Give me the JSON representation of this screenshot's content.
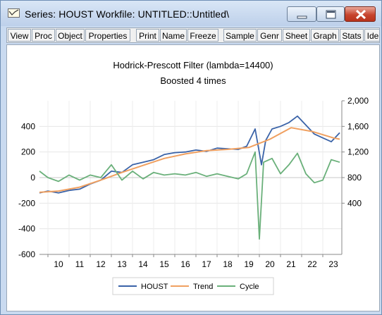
{
  "window": {
    "title": "Series: HOUST   Workfile: UNTITLED::Untitled\\",
    "controls": [
      "minimize",
      "maximize",
      "close"
    ]
  },
  "toolbar": {
    "buttons": [
      "View",
      "Proc",
      "Object",
      "Properties",
      "Print",
      "Name",
      "Freeze",
      "Sample",
      "Genr",
      "Sheet",
      "Graph",
      "Stats",
      "Ide"
    ]
  },
  "chart_data": {
    "type": "line",
    "title": "Hodrick-Prescott Filter (lambda=14400)",
    "subtitle": "Boosted 4 times",
    "xlabel": "",
    "ylabel": "",
    "x_ticks": [
      "10",
      "11",
      "12",
      "13",
      "14",
      "15",
      "16",
      "17",
      "18",
      "19",
      "20",
      "21",
      "22",
      "23"
    ],
    "x_range": [
      2009.6,
      2023.9
    ],
    "left_axis": {
      "range": [
        -600,
        600
      ],
      "ticks": [
        "400",
        "200",
        "0",
        "-200",
        "-400",
        "-600"
      ],
      "tick_values": [
        400,
        200,
        0,
        -200,
        -400,
        -600
      ]
    },
    "right_axis": {
      "range": [
        -400,
        2000
      ],
      "ticks": [
        "2,000",
        "1,600",
        "1,200",
        "800",
        "400"
      ],
      "tick_values": [
        2000,
        1600,
        1200,
        800,
        400
      ]
    },
    "grid": true,
    "legend": "bottom-center",
    "colors": {
      "HOUST": "#3a63a8",
      "Trend": "#f0a060",
      "Cycle": "#6ab07a"
    },
    "series": [
      {
        "name": "HOUST",
        "axis": "right",
        "x": [
          2009.6,
          2010.0,
          2010.5,
          2011.0,
          2011.5,
          2012.0,
          2012.5,
          2013.0,
          2013.5,
          2014.0,
          2014.5,
          2015.0,
          2015.5,
          2016.0,
          2016.5,
          2017.0,
          2017.5,
          2018.0,
          2018.5,
          2019.0,
          2019.4,
          2019.8,
          2020.1,
          2020.3,
          2020.6,
          2021.0,
          2021.4,
          2021.8,
          2022.2,
          2022.6,
          2023.0,
          2023.4,
          2023.8
        ],
        "values": [
          560,
          590,
          560,
          600,
          620,
          700,
          760,
          900,
          880,
          1000,
          1040,
          1080,
          1160,
          1190,
          1200,
          1230,
          1210,
          1260,
          1250,
          1240,
          1290,
          1560,
          1000,
          1380,
          1560,
          1600,
          1660,
          1760,
          1620,
          1480,
          1420,
          1360,
          1500
        ]
      },
      {
        "name": "Trend",
        "axis": "right",
        "x": [
          2009.6,
          2010.5,
          2011.5,
          2012.5,
          2013.5,
          2014.5,
          2015.5,
          2016.5,
          2017.5,
          2018.5,
          2019.5,
          2020.5,
          2021.5,
          2022.5,
          2023.5,
          2023.8
        ],
        "values": [
          570,
          590,
          650,
          760,
          880,
          990,
          1100,
          1170,
          1220,
          1240,
          1270,
          1400,
          1580,
          1520,
          1420,
          1400
        ]
      },
      {
        "name": "Cycle",
        "axis": "left",
        "x": [
          2009.6,
          2010.0,
          2010.5,
          2011.0,
          2011.5,
          2012.0,
          2012.5,
          2013.0,
          2013.5,
          2014.0,
          2014.5,
          2015.0,
          2015.5,
          2016.0,
          2016.5,
          2017.0,
          2017.5,
          2018.0,
          2018.5,
          2019.0,
          2019.4,
          2019.8,
          2020.0,
          2020.2,
          2020.6,
          2021.0,
          2021.4,
          2021.8,
          2022.2,
          2022.6,
          2023.0,
          2023.4,
          2023.8
        ],
        "values": [
          50,
          0,
          -30,
          20,
          -20,
          20,
          0,
          100,
          -20,
          50,
          -10,
          40,
          20,
          30,
          20,
          40,
          10,
          30,
          10,
          -10,
          30,
          200,
          -480,
          120,
          150,
          30,
          100,
          190,
          30,
          -40,
          -20,
          140,
          120
        ]
      }
    ]
  }
}
